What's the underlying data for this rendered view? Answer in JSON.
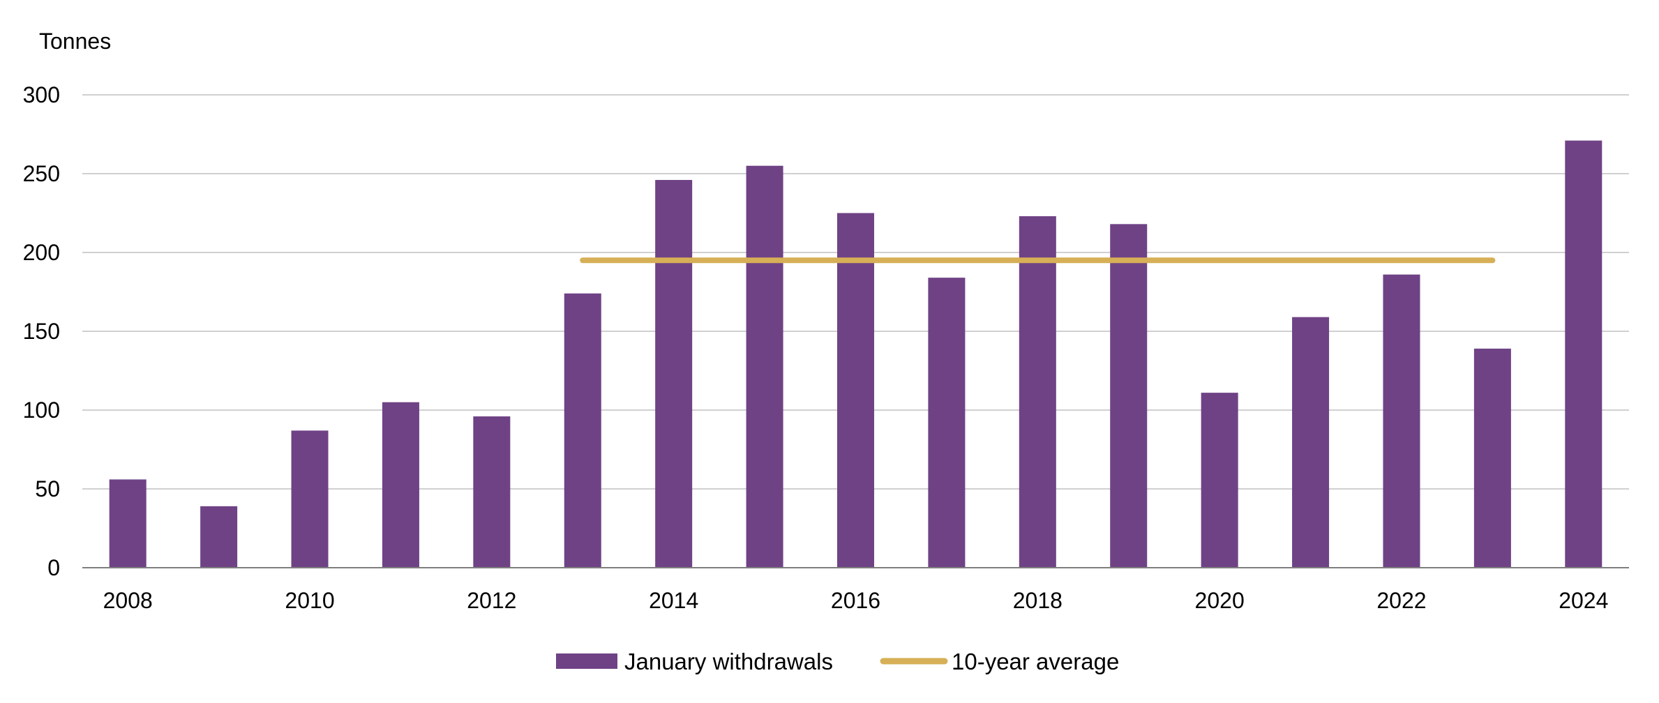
{
  "chart_data": {
    "type": "bar",
    "title": "",
    "ylabel": "Tonnes",
    "xlabel": "",
    "ylim": [
      0,
      300
    ],
    "yticks": [
      "0",
      "50",
      "100",
      "150",
      "200",
      "250",
      "300"
    ],
    "categories": [
      "2008",
      "2009",
      "2010",
      "2011",
      "2012",
      "2013",
      "2014",
      "2015",
      "2016",
      "2017",
      "2018",
      "2019",
      "2020",
      "2021",
      "2022",
      "2023",
      "2024"
    ],
    "xtick_labels": [
      "2008",
      "",
      "2010",
      "",
      "2012",
      "",
      "2014",
      "",
      "2016",
      "",
      "2018",
      "",
      "2020",
      "",
      "2022",
      "",
      "2024"
    ],
    "series": [
      {
        "name": "January withdrawals",
        "type": "bar",
        "color": "#6f4285",
        "values": [
          56,
          39,
          87,
          105,
          96,
          174,
          246,
          255,
          225,
          184,
          223,
          218,
          111,
          159,
          186,
          139,
          271
        ]
      },
      {
        "name": "10-year average",
        "type": "line",
        "color": "#d6af57",
        "from": "2013",
        "to": "2023",
        "value": 195
      }
    ],
    "grid": true,
    "legend_position": "bottom-center"
  }
}
